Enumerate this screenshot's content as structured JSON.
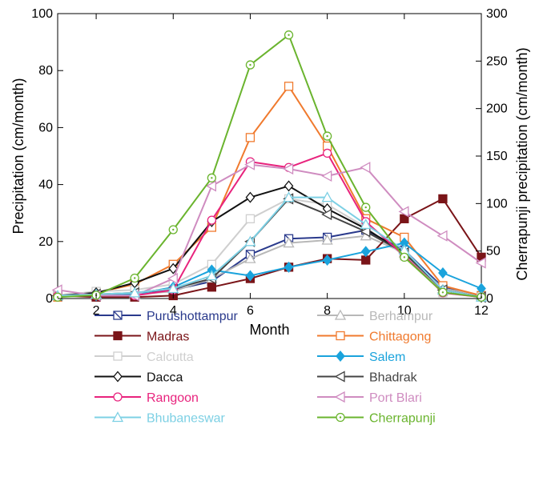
{
  "chart_data": {
    "type": "line",
    "xlabel": "Month",
    "ylabel": "Precipitation (cm/month)",
    "ylabel_right": "Cherrapunji precipitation (cm/month)",
    "xlim": [
      1,
      12
    ],
    "ylim": [
      0,
      100
    ],
    "ylim_right": [
      0,
      300
    ],
    "x_ticks": [
      2,
      4,
      6,
      8,
      10,
      12
    ],
    "y_ticks": [
      0,
      20,
      40,
      60,
      80,
      100
    ],
    "y_ticks_right": [
      0,
      50,
      100,
      150,
      200,
      250,
      300
    ],
    "grid": false,
    "legend_position": "bottom, two columns",
    "x": [
      1,
      2,
      3,
      4,
      5,
      6,
      7,
      8,
      9,
      10,
      11,
      12
    ],
    "series": [
      {
        "name": "Purushottampur",
        "color": "#2a3a8c",
        "marker": "square-diag",
        "filled": false,
        "axis": "left",
        "values": [
          1,
          1,
          1.5,
          3,
          6,
          15.5,
          21,
          21.5,
          24,
          17,
          4,
          1
        ]
      },
      {
        "name": "Berhampur",
        "color": "#b8b8b8",
        "marker": "triangle-up",
        "filled": false,
        "axis": "left",
        "values": [
          1,
          1,
          1.5,
          2.5,
          7,
          14,
          19.5,
          20.5,
          22,
          16,
          3.5,
          1
        ]
      },
      {
        "name": "Madras",
        "color": "#7a1418",
        "marker": "square",
        "filled": true,
        "axis": "left",
        "values": [
          1,
          0.5,
          0.5,
          1,
          4,
          7,
          11,
          14,
          13.5,
          28,
          35,
          14.5
        ]
      },
      {
        "name": "Chittagong",
        "color": "#f07a2e",
        "marker": "square",
        "filled": false,
        "axis": "left",
        "values": [
          0.5,
          2,
          5,
          12,
          25,
          56.5,
          74.5,
          53.5,
          28,
          21.5,
          4.5,
          1
        ]
      },
      {
        "name": "Calcutta",
        "color": "#cfcfcf",
        "marker": "square",
        "filled": false,
        "axis": "left",
        "values": [
          1,
          2.5,
          3,
          5,
          12,
          28,
          35,
          33,
          25,
          15,
          2,
          0.5
        ]
      },
      {
        "name": "Salem",
        "color": "#1aa3dc",
        "marker": "diamond",
        "filled": true,
        "axis": "left",
        "values": [
          1,
          1,
          1.5,
          4,
          10,
          8,
          11,
          13.5,
          16.5,
          19.5,
          9,
          3.5
        ]
      },
      {
        "name": "Dacca",
        "color": "#111111",
        "marker": "diamond",
        "filled": false,
        "axis": "left",
        "values": [
          1,
          2,
          5.5,
          10.5,
          27,
          35.5,
          39.5,
          31.5,
          24.5,
          16,
          3,
          0.5
        ]
      },
      {
        "name": "Bhadrak",
        "color": "#444444",
        "marker": "triangle-left",
        "filled": false,
        "axis": "left",
        "values": [
          1,
          1.5,
          2,
          3.5,
          7,
          20,
          35,
          29.5,
          23.5,
          16,
          3,
          0.5
        ]
      },
      {
        "name": "Rangoon",
        "color": "#e8237d",
        "marker": "circle",
        "filled": false,
        "axis": "left",
        "values": [
          1,
          1,
          1,
          3,
          27.5,
          48,
          46,
          51,
          27,
          15,
          2,
          0.5
        ]
      },
      {
        "name": "Port Blari",
        "color": "#cf8cc0",
        "marker": "triangle-left",
        "filled": false,
        "axis": "left",
        "values": [
          3,
          1,
          1,
          7,
          39.5,
          47,
          45.5,
          43,
          46,
          30.5,
          22,
          12.5
        ]
      },
      {
        "name": "Bhubaneswar",
        "color": "#7dd0e4",
        "marker": "triangle-up",
        "filled": false,
        "axis": "left",
        "values": [
          1,
          1.5,
          2,
          3.5,
          8,
          20,
          35.5,
          35.5,
          26,
          17,
          3,
          0.5
        ]
      },
      {
        "name": "Cherrapunji",
        "color": "#6ab42e",
        "marker": "circle-dot",
        "filled": false,
        "axis": "right",
        "values": [
          1.5,
          3.5,
          21.5,
          72.5,
          127,
          246,
          277.5,
          171,
          96,
          43.5,
          6.5,
          1.5
        ]
      }
    ]
  },
  "colors": {
    "axis": "#000000",
    "background": "#ffffff"
  }
}
